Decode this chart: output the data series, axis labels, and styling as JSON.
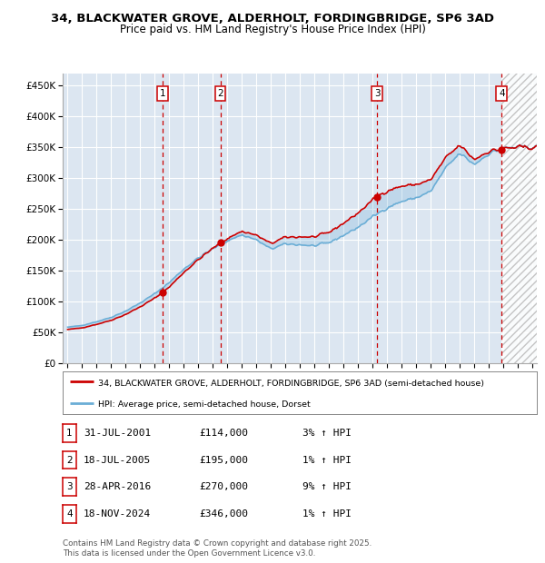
{
  "title1": "34, BLACKWATER GROVE, ALDERHOLT, FORDINGBRIDGE, SP6 3AD",
  "title2": "Price paid vs. HM Land Registry's House Price Index (HPI)",
  "xlim": [
    1994.7,
    2027.3
  ],
  "ylim": [
    0,
    470000
  ],
  "yticks": [
    0,
    50000,
    100000,
    150000,
    200000,
    250000,
    300000,
    350000,
    400000,
    450000
  ],
  "ytick_labels": [
    "£0",
    "£50K",
    "£100K",
    "£150K",
    "£200K",
    "£250K",
    "£300K",
    "£350K",
    "£400K",
    "£450K"
  ],
  "background_color": "#ffffff",
  "plot_bg_color": "#dce6f1",
  "grid_color": "#ffffff",
  "transactions": [
    {
      "num": 1,
      "date": "31-JUL-2001",
      "price": 114000,
      "hpi_pct": "3%",
      "year": 2001.58
    },
    {
      "num": 2,
      "date": "18-JUL-2005",
      "price": 195000,
      "hpi_pct": "1%",
      "year": 2005.54
    },
    {
      "num": 3,
      "date": "28-APR-2016",
      "price": 270000,
      "hpi_pct": "9%",
      "year": 2016.32
    },
    {
      "num": 4,
      "date": "18-NOV-2024",
      "price": 346000,
      "hpi_pct": "1%",
      "year": 2024.88
    }
  ],
  "legend_line1": "34, BLACKWATER GROVE, ALDERHOLT, FORDINGBRIDGE, SP6 3AD (semi-detached house)",
  "legend_line2": "HPI: Average price, semi-detached house, Dorset",
  "footnote1": "Contains HM Land Registry data © Crown copyright and database right 2025.",
  "footnote2": "This data is licensed under the Open Government Licence v3.0.",
  "hpi_color": "#6baed6",
  "price_color": "#cc0000",
  "marker_box_color": "#cc0000",
  "vline_color": "#cc0000",
  "future_cutoff": 2024.88
}
